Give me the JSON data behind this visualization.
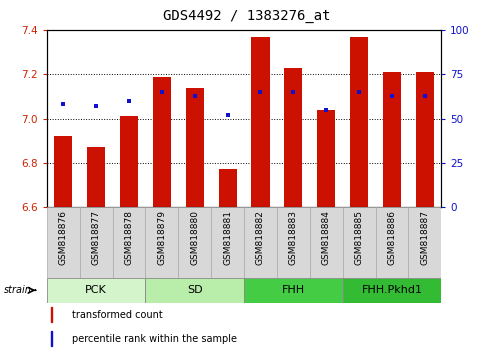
{
  "title": "GDS4492 / 1383276_at",
  "samples": [
    "GSM818876",
    "GSM818877",
    "GSM818878",
    "GSM818879",
    "GSM818880",
    "GSM818881",
    "GSM818882",
    "GSM818883",
    "GSM818884",
    "GSM818885",
    "GSM818886",
    "GSM818887"
  ],
  "red_values": [
    6.92,
    6.87,
    7.01,
    7.19,
    7.14,
    6.77,
    7.37,
    7.23,
    7.04,
    7.37,
    7.21,
    7.21
  ],
  "blue_pct": [
    58,
    57,
    60,
    65,
    63,
    52,
    65,
    65,
    55,
    65,
    63,
    63
  ],
  "ylim_left": [
    6.6,
    7.4
  ],
  "ylim_right": [
    0,
    100
  ],
  "yticks_left": [
    6.6,
    6.8,
    7.0,
    7.2,
    7.4
  ],
  "yticks_right": [
    0,
    25,
    50,
    75,
    100
  ],
  "groups": [
    {
      "label": "PCK",
      "start": 0,
      "end": 3,
      "color": "#d4f5cc"
    },
    {
      "label": "SD",
      "start": 3,
      "end": 6,
      "color": "#b8eeaa"
    },
    {
      "label": "FHH",
      "start": 6,
      "end": 9,
      "color": "#44cc44"
    },
    {
      "label": "FHH.Pkhd1",
      "start": 9,
      "end": 12,
      "color": "#33bb33"
    }
  ],
  "bar_color": "#cc1100",
  "dot_color": "#1111cc",
  "bar_bottom": 6.6,
  "bar_width": 0.55,
  "legend_items": [
    {
      "label": "transformed count",
      "color": "#cc1100"
    },
    {
      "label": "percentile rank within the sample",
      "color": "#1111cc"
    }
  ],
  "left_tick_color": "#cc2200",
  "right_tick_color": "#1111cc",
  "title_fontsize": 10,
  "tick_fontsize": 7.5,
  "xtick_fontsize": 6.5,
  "group_fontsize": 8,
  "legend_fontsize": 7,
  "cell_bg": "#d8d8d8",
  "cell_edge": "#aaaaaa"
}
